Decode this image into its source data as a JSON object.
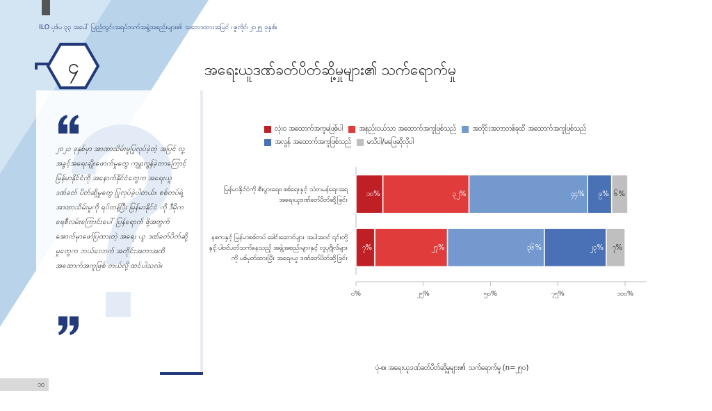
{
  "chart_data": {
    "type": "bar",
    "orientation": "horizontal",
    "stacked": true,
    "title": "အရေးယူဒဏ်ခတ်ပိတ်ဆို့မှုများ၏ သက်ရောက်မှု",
    "categories": [
      "မြန်မာနိုင်ငံကို စီးပွားရေး၊ စစ်ရေးနှင့် သံတမန်ရေးအရ အရေးယူဒဏ်ခတ်ပိတ်ဆို့ခြင်း",
      "နစကနှင့် မြန်မာစစ်တပ် ခေါင်းဆောင်များ အပါအဝင် ၎င်းတို့နှင့် ပါဝင်ပတ်သက်နေသည့် အဖွဲ့အစည်းများနှင့် လူပုဂ္ဂိုလ်များကို ပစ်မှတ်ထားပြီး အရေးယူ ဒဏ်ခတ်ပိတ်ဆို့ခြင်း"
    ],
    "series": [
      {
        "name": "လုံး၀ အထောက်အကူမဖြစ်ပါ",
        "color": "#be2026",
        "values": [
          10,
          7
        ],
        "value_labels": [
          "၁၀%",
          "၇%"
        ]
      },
      {
        "name": "အနည်းငယ်သာ အထောက်အကူဖြစ်သည်",
        "color": "#e03c3c",
        "values": [
          32,
          27
        ],
        "value_labels": [
          "၃၂%",
          "၂၇%"
        ]
      },
      {
        "name": "အတိုင်းအတာတစ်ခုထိ အထောက်အကူဖြစ်သည်",
        "color": "#7399cf",
        "values": [
          44,
          36
        ],
        "value_labels": [
          "၄၄%",
          "၃၆%"
        ]
      },
      {
        "name": "အလွန် အထောက်အကူဖြစ်သည်",
        "color": "#4a70b5",
        "values": [
          9,
          23
        ],
        "value_labels": [
          "၉%",
          "၂၃%"
        ]
      },
      {
        "name": "မသိပါ/မဖြေဆိုလိုပါ",
        "color": "#bfbfbf",
        "values": [
          6,
          7
        ],
        "value_labels": [
          "၆%",
          "၇%"
        ]
      }
    ],
    "xlim": [
      0,
      108
    ],
    "xticks": [
      {
        "value": 0,
        "label": "၀%"
      },
      {
        "value": 25,
        "label": "၂၅%"
      },
      {
        "value": 50,
        "label": "၅၀%"
      },
      {
        "value": 75,
        "label": "၇၅%"
      },
      {
        "value": 100,
        "label": "၁၀၀%"
      }
    ],
    "legend": "top",
    "annotations": [
      "ILO ပုဒ်မ ၃၃ အပေါ် ပြည်တွင်းအရပ်ဘက်အဖွဲ့အစည်းများ၏ သဘောထားအမြင် ၊ ဇူလိုင်၊ ၂၀၂၅ ခုနှစ်။",
      "၄",
      "၂၀၂၁ ခုနှစ်မှာ အာဏာသိမ်းမှုပြုလုပ်ခဲ့တဲ့ အပြင် လူ့အခွင့်အရေးချိုးဖောက်မှုတွေ ကျူးလွန်ခဲ့တာကြောင့် မြန်မာနိုင်ငံကို အနောက်နိုင်ငံတွေက အရေးယူ ဒဏ်ခတ် ပိတ်ဆို့မှုတွေ ပြုလုပ်ခဲ့ပါတယ်။ စစ်တပ်ရဲ့ အာဏာသိမ်းမှုကို ရပ်တန့်ပြီး မြန်မာနိုင်ငံ ကို ဒီမိုကရေစီလမ်းကြောင်းပေါ် ပြန်ရောက် ဖို့အတွက် အောက်မှာဖော်ပြထားတဲ့ အရေး ယူ ဒဏ်ခတ်ပိတ်ဆို့မှုတွေက ဘယ်လောက် အတိုင်းအတာအထိ အထောက်အကူဖြစ် တယ်လို့ ထင်ပါသလဲ။",
      "ပုံ-၈။ အရေးယူဒဏ်ခတ်ပိတ်ဆို့မှုများ၏ သက်ရောက်မှု (n=၂၅၀)",
      "၁၀"
    ]
  }
}
